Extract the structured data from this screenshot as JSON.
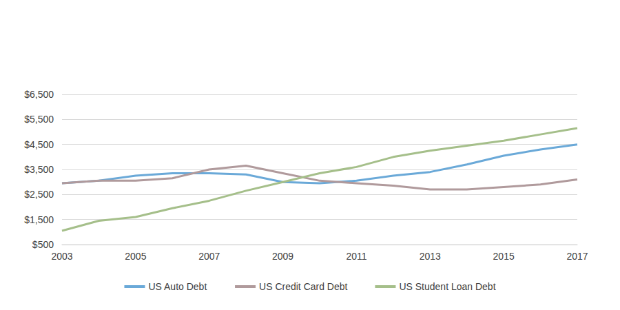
{
  "chart_data": {
    "type": "line",
    "x": [
      2003,
      2004,
      2005,
      2006,
      2007,
      2008,
      2009,
      2010,
      2011,
      2012,
      2013,
      2014,
      2015,
      2016,
      2017
    ],
    "xlim": [
      2003,
      2017
    ],
    "xticks": [
      2003,
      2005,
      2007,
      2009,
      2011,
      2013,
      2015,
      2017
    ],
    "ylim": [
      500,
      6500
    ],
    "yticks": [
      {
        "value": 500,
        "label": "$500"
      },
      {
        "value": 1500,
        "label": "$1,500"
      },
      {
        "value": 2500,
        "label": "$2,500"
      },
      {
        "value": 3500,
        "label": "$3,500"
      },
      {
        "value": 4500,
        "label": "$4,500"
      },
      {
        "value": 5500,
        "label": "$5,500"
      },
      {
        "value": 6500,
        "label": "$6,500"
      }
    ],
    "grid": true,
    "legend": "bottom",
    "series": [
      {
        "name": "US Auto Debt",
        "color": "#6aa9d8",
        "values": [
          2950,
          3050,
          3250,
          3350,
          3350,
          3300,
          3000,
          2950,
          3050,
          3250,
          3400,
          3700,
          4050,
          4300,
          4500
        ]
      },
      {
        "name": "US Credit Card Debt",
        "color": "#b09a9c",
        "values": [
          2950,
          3050,
          3050,
          3150,
          3500,
          3650,
          3350,
          3050,
          2950,
          2850,
          2700,
          2700,
          2800,
          2900,
          3100
        ]
      },
      {
        "name": "US Student Loan Debt",
        "color": "#a5bf8a",
        "values": [
          1050,
          1450,
          1600,
          1950,
          2250,
          2650,
          3000,
          3350,
          3600,
          4000,
          4250,
          4450,
          4650,
          4900,
          5150
        ]
      }
    ]
  }
}
